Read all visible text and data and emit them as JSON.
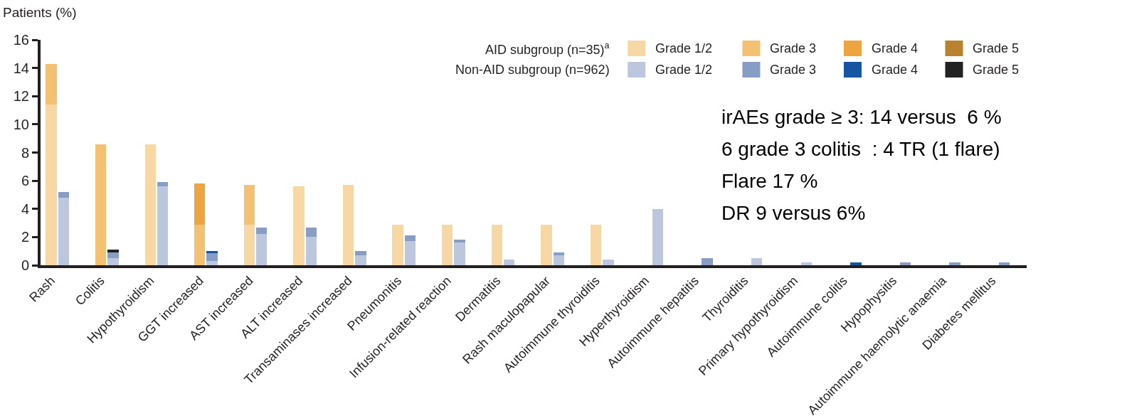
{
  "chart_data": {
    "type": "bar",
    "stacked": true,
    "ylabel": "Patients (%)",
    "categories": [
      "Rash",
      null,
      null,
      null,
      "Colitis",
      null,
      null,
      null,
      "Hypothyroidism",
      null,
      null,
      null,
      "GGT increased",
      null,
      null,
      null,
      "AST increased",
      null,
      null,
      null,
      "ALT increased",
      null,
      null,
      null,
      "Transaminases increased",
      null,
      null,
      null,
      "Pneumonitis",
      null,
      null,
      null,
      "Infusion-related reaction",
      null,
      null,
      null,
      "Dermatitis",
      null,
      null,
      null,
      "Rash maculopapular",
      null,
      null,
      null,
      "Autoimmune thyroiditis",
      null,
      null,
      null,
      "Hyperthyroidism",
      null,
      null,
      null,
      "Autoimmune hepatitis",
      null,
      null,
      null,
      "Thyroiditis",
      null,
      null,
      null,
      "Primary hypothyroidism",
      null,
      null,
      null,
      "Autoimmune colitis",
      null,
      null,
      null,
      "Hypophysitis",
      null,
      null,
      null,
      "Autoimmune haemolytic anaemia",
      null,
      null,
      null,
      "Diabetes mellitus",
      null,
      null,
      null
    ],
    "series": [
      {
        "name": "Grade 1/2",
        "color": "#f7d7a4",
        "values": [
          11.4,
          null,
          null,
          null,
          null,
          null,
          null,
          null,
          8.6,
          null,
          null,
          null,
          null,
          null,
          null,
          null,
          2.9,
          null,
          null,
          null,
          5.6,
          null,
          null,
          null,
          5.7,
          null,
          null,
          null,
          2.9,
          null,
          null,
          null,
          2.9,
          null,
          null,
          null,
          2.9,
          null,
          null,
          null,
          2.9,
          null,
          null,
          null,
          2.9,
          null,
          null,
          null,
          null,
          null,
          null,
          null,
          null,
          null,
          null,
          null,
          null,
          null,
          null,
          null,
          null,
          null,
          null,
          null,
          null,
          null,
          null,
          null,
          null,
          null,
          null,
          null,
          null,
          null,
          null,
          null,
          null,
          null,
          null,
          null
        ]
      },
      {
        "name": "Grade 3",
        "color": "#f4c072",
        "values": [
          2.9,
          null,
          null,
          null,
          8.6,
          null,
          null,
          null,
          null,
          null,
          null,
          null,
          2.9,
          null,
          null,
          null,
          2.8,
          null,
          null,
          null,
          null,
          null,
          null,
          null,
          null,
          null,
          null,
          null,
          null,
          null,
          null,
          null,
          null,
          null,
          null,
          null,
          null,
          null,
          null,
          null,
          null,
          null,
          null,
          null,
          null,
          null,
          null,
          null,
          null,
          null,
          null,
          null,
          null,
          null,
          null,
          null,
          null,
          null,
          null,
          null,
          null,
          null,
          null,
          null,
          null,
          null,
          null,
          null,
          null,
          null,
          null,
          null,
          null,
          null,
          null,
          null,
          null,
          null,
          null,
          null
        ]
      },
      {
        "name": "Grade 4",
        "color": "#eea43f",
        "values": [
          null,
          null,
          null,
          null,
          null,
          null,
          null,
          null,
          null,
          null,
          null,
          null,
          2.9,
          null,
          null,
          null,
          null,
          null,
          null,
          null,
          null,
          null,
          null,
          null,
          null,
          null,
          null,
          null,
          null,
          null,
          null,
          null,
          null,
          null,
          null,
          null,
          null,
          null,
          null,
          null,
          null,
          null,
          null,
          null,
          null,
          null,
          null,
          null,
          null,
          null,
          null,
          null,
          null,
          null,
          null,
          null,
          null,
          null,
          null,
          null,
          null,
          null,
          null,
          null,
          null,
          null,
          null,
          null,
          null,
          null,
          null,
          null,
          null,
          null,
          null,
          null,
          null,
          null,
          null,
          null
        ]
      },
      {
        "name": "Grade 5",
        "color": "#b8822f",
        "values": [
          null,
          null,
          null,
          null,
          null,
          null,
          null,
          null,
          null,
          null,
          null,
          null,
          null,
          null,
          null,
          null,
          null,
          null,
          null,
          null,
          null,
          null,
          null,
          null,
          null,
          null,
          null,
          null,
          null,
          null,
          null,
          null,
          null,
          null,
          null,
          null,
          null,
          null,
          null,
          null,
          null,
          null,
          null,
          null,
          null,
          null,
          null,
          null,
          null,
          null,
          null,
          null,
          null,
          null,
          null,
          null,
          null,
          null,
          null,
          null,
          null,
          null,
          null,
          null,
          null,
          null,
          null,
          null,
          null,
          null,
          null,
          null,
          null,
          null,
          null,
          null,
          null,
          null,
          null,
          null
        ]
      },
      {
        "name": "Grade 1/2",
        "color": "#bcc6dc",
        "values": [
          null,
          4.8,
          null,
          null,
          null,
          0.5,
          null,
          null,
          null,
          5.6,
          null,
          null,
          null,
          0.3,
          null,
          null,
          null,
          2.2,
          null,
          null,
          null,
          2.0,
          null,
          null,
          null,
          0.7,
          null,
          null,
          null,
          1.7,
          null,
          null,
          null,
          1.6,
          null,
          null,
          null,
          0.4,
          null,
          null,
          null,
          0.7,
          null,
          null,
          null,
          0.4,
          null,
          null,
          null,
          4.0,
          null,
          null,
          null,
          null,
          null,
          null,
          null,
          0.5,
          null,
          null,
          null,
          0.2,
          null,
          null,
          null,
          null,
          null,
          null,
          null,
          null,
          null,
          null,
          null,
          null,
          null,
          null,
          null,
          null,
          null,
          null
        ]
      },
      {
        "name": "Grade 3",
        "color": "#889dc4",
        "values": [
          null,
          0.4,
          null,
          null,
          null,
          0.4,
          null,
          null,
          null,
          0.3,
          null,
          null,
          null,
          0.6,
          null,
          null,
          null,
          0.5,
          null,
          null,
          null,
          0.7,
          null,
          null,
          null,
          0.3,
          null,
          null,
          null,
          0.4,
          null,
          null,
          null,
          0.2,
          null,
          null,
          null,
          null,
          null,
          null,
          null,
          0.2,
          null,
          null,
          null,
          null,
          null,
          null,
          null,
          null,
          null,
          null,
          null,
          0.5,
          null,
          null,
          null,
          null,
          null,
          null,
          null,
          null,
          null,
          null,
          null,
          null,
          null,
          null,
          null,
          0.2,
          null,
          null,
          null,
          0.2,
          null,
          null,
          null,
          0.2,
          null,
          null
        ]
      },
      {
        "name": "Grade 4",
        "color": "#1656a0",
        "values": [
          null,
          null,
          null,
          null,
          null,
          null,
          null,
          null,
          null,
          null,
          null,
          null,
          null,
          0.1,
          null,
          null,
          null,
          null,
          null,
          null,
          null,
          null,
          null,
          null,
          null,
          null,
          null,
          null,
          null,
          null,
          null,
          null,
          null,
          null,
          null,
          null,
          null,
          null,
          null,
          null,
          null,
          null,
          null,
          null,
          null,
          null,
          null,
          null,
          null,
          null,
          null,
          null,
          null,
          null,
          null,
          null,
          null,
          null,
          null,
          null,
          null,
          null,
          null,
          null,
          null,
          0.2,
          null,
          null,
          null,
          null,
          null,
          null,
          null,
          null,
          null,
          null,
          null,
          null,
          null,
          null
        ]
      },
      {
        "name": "Grade 5",
        "color": "#222222",
        "values": [
          null,
          null,
          null,
          null,
          null,
          0.2,
          null,
          null,
          null,
          null,
          null,
          null,
          null,
          null,
          null,
          null,
          null,
          null,
          null,
          null,
          null,
          null,
          null,
          null,
          null,
          null,
          null,
          null,
          null,
          null,
          null,
          null,
          null,
          null,
          null,
          null,
          null,
          null,
          null,
          null,
          null,
          null,
          null,
          null,
          null,
          null,
          null,
          null,
          null,
          null,
          null,
          null,
          null,
          null,
          null,
          null,
          null,
          null,
          null,
          null,
          null,
          null,
          null,
          null,
          null,
          null,
          null,
          null,
          null,
          null,
          null,
          null,
          null,
          null,
          null,
          null,
          null,
          null,
          null,
          null
        ]
      }
    ],
    "ylim": [
      0,
      16
    ],
    "yticks": [
      0,
      2,
      4,
      6,
      8,
      10,
      12,
      14,
      16
    ],
    "legend": "top right",
    "annotations": [
      "AID subgroup (n=35)$^{a}$",
      "Non-AID subgroup (n=962)",
      "irAEs grade ≥ 3: 14 versus  6 %",
      "6 grade 3 colitis  : 4 TR (1 flare)",
      "Flare 17 %",
      "DR 9 versus 6%"
    ]
  }
}
